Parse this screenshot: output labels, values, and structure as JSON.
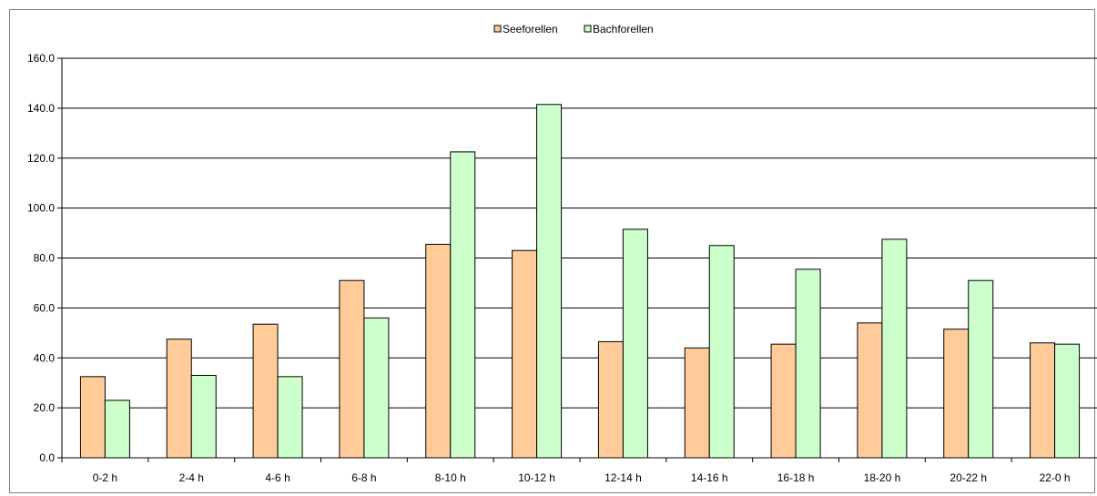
{
  "chart_data": {
    "type": "bar",
    "title": "",
    "xlabel": "",
    "ylabel": "",
    "categories": [
      "0-2 h",
      "2-4 h",
      "4-6 h",
      "6-8 h",
      "8-10 h",
      "10-12 h",
      "12-14 h",
      "14-16 h",
      "16-18 h",
      "18-20 h",
      "20-22 h",
      "22-0 h"
    ],
    "series": [
      {
        "name": "Seeforellen",
        "color": "#FFCC99",
        "values": [
          32.5,
          47.5,
          53.5,
          71.0,
          85.5,
          83.0,
          46.5,
          44.0,
          45.5,
          54.0,
          51.5,
          46.0
        ]
      },
      {
        "name": "Bachforellen",
        "color": "#CCFFCC",
        "values": [
          23.0,
          33.0,
          32.5,
          56.0,
          122.5,
          141.5,
          91.5,
          85.0,
          75.5,
          87.5,
          71.0,
          45.5
        ]
      }
    ],
    "ylim": [
      0,
      160
    ],
    "yticks": [
      "0.0",
      "20.0",
      "40.0",
      "60.0",
      "80.0",
      "100.0",
      "120.0",
      "140.0",
      "160.0"
    ],
    "grid": true,
    "legend": "top-center"
  }
}
